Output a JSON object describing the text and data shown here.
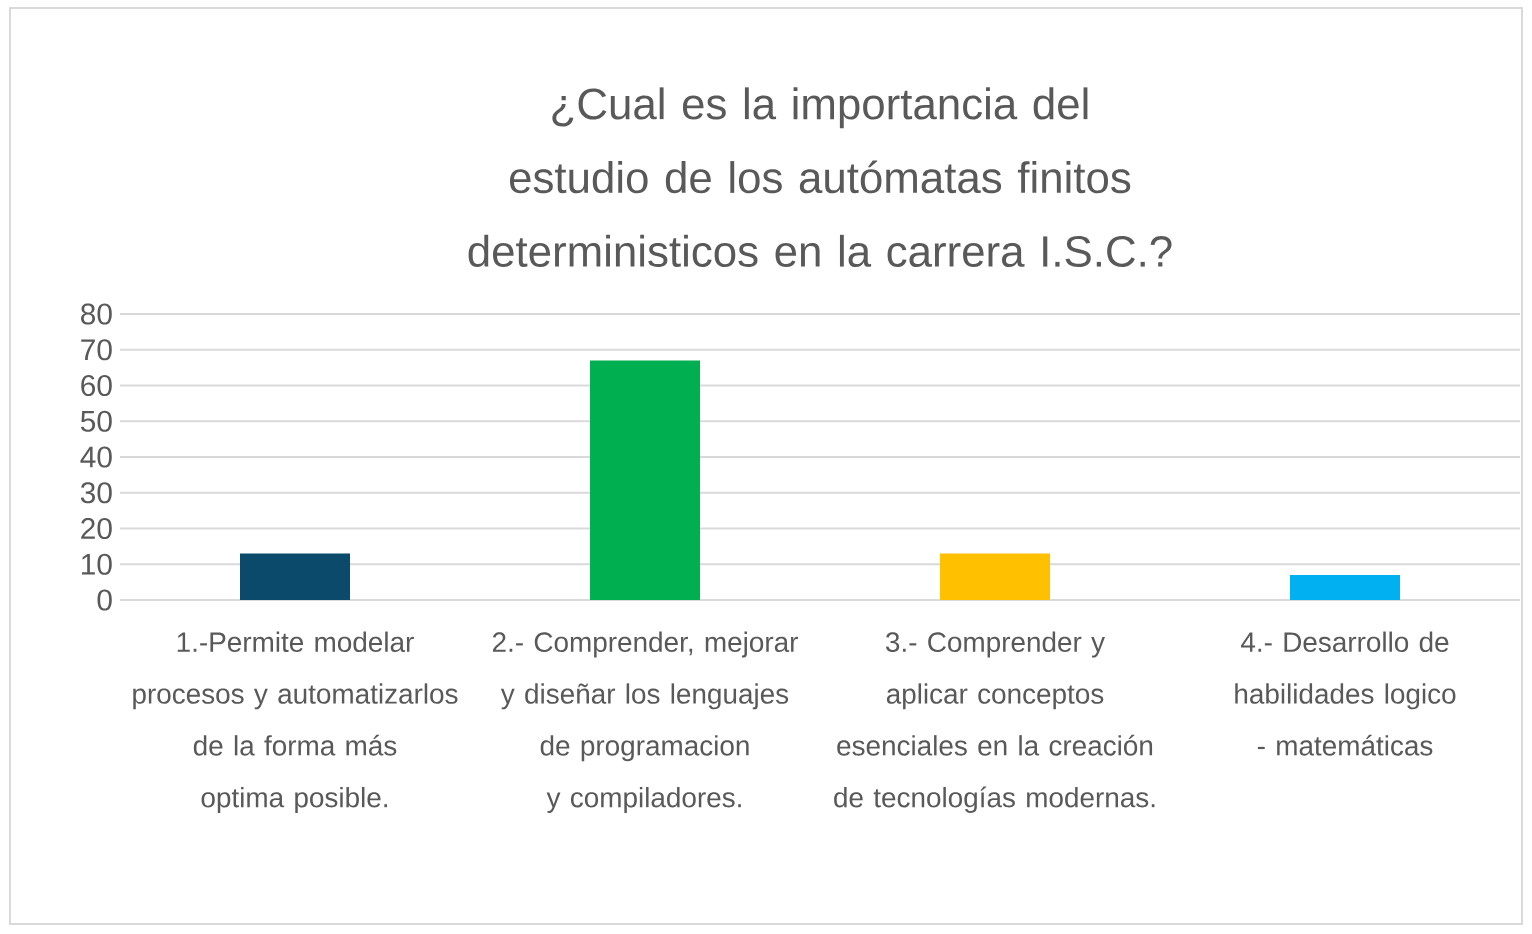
{
  "chart_data": {
    "type": "bar",
    "title": "¿Cual es la importancia del estudio de los autómatas finitos deterministicos en la carrera I.S.C.?",
    "categories": [
      "1.-Permite modelar procesos y automatizarlos de la forma más optima posible.",
      "2.- Comprender, mejorar y diseñar los lenguajes de programacion y compiladores.",
      "3.- Comprender y aplicar conceptos esenciales en la creación de tecnologías modernas.",
      "4.- Desarrollo de habilidades logico - matemáticas"
    ],
    "values": [
      13,
      67,
      13,
      7
    ],
    "colors": [
      "#0b4a6a",
      "#00b050",
      "#ffc000",
      "#00b0f0"
    ],
    "ylim": [
      0,
      80
    ],
    "yticks": [
      0,
      10,
      20,
      30,
      40,
      50,
      60,
      70,
      80
    ],
    "grid": "y"
  }
}
